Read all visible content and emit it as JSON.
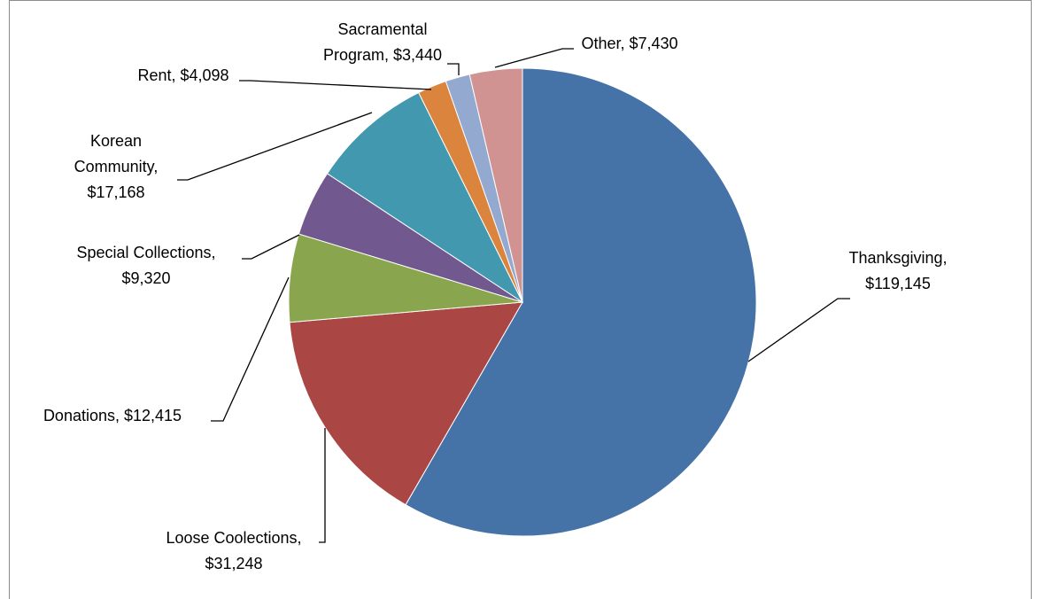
{
  "chart_data": {
    "type": "pie",
    "slices": [
      {
        "label": "Thanksgiving",
        "value": 119145,
        "display": "$119,145",
        "color": "#4572a7"
      },
      {
        "label": "Loose Coolections",
        "value": 31248,
        "display": "$31,248",
        "color": "#aa4643"
      },
      {
        "label": "Donations",
        "value": 12415,
        "display": "$12,415",
        "color": "#89a54e"
      },
      {
        "label": "Special Collections",
        "value": 9320,
        "display": "$9,320",
        "color": "#71588f"
      },
      {
        "label": "Korean Community",
        "value": 17168,
        "display": "$17,168",
        "color": "#4198af"
      },
      {
        "label": "Rent",
        "value": 4098,
        "display": "$4,098",
        "color": "#db843d"
      },
      {
        "label": "Sacramental Program",
        "value": 3440,
        "display": "$3,440",
        "color": "#93a9cf"
      },
      {
        "label": "Other",
        "value": 7430,
        "display": "$7,430",
        "color": "#d19392"
      }
    ],
    "data_labels": [
      {
        "lines": [
          "Thanksgiving,",
          "$119,145"
        ]
      },
      {
        "lines": [
          "Loose Coolections,",
          "$31,248"
        ]
      },
      {
        "lines": [
          "Donations, $12,415"
        ]
      },
      {
        "lines": [
          "Special Collections,",
          "$9,320"
        ]
      },
      {
        "lines": [
          "Korean",
          "Community,",
          "$17,168"
        ]
      },
      {
        "lines": [
          "Rent, $4,098"
        ]
      },
      {
        "lines": [
          "Sacramental",
          "Program, $3,440"
        ]
      },
      {
        "lines": [
          "Other, $7,430"
        ]
      }
    ],
    "legend": "none"
  }
}
